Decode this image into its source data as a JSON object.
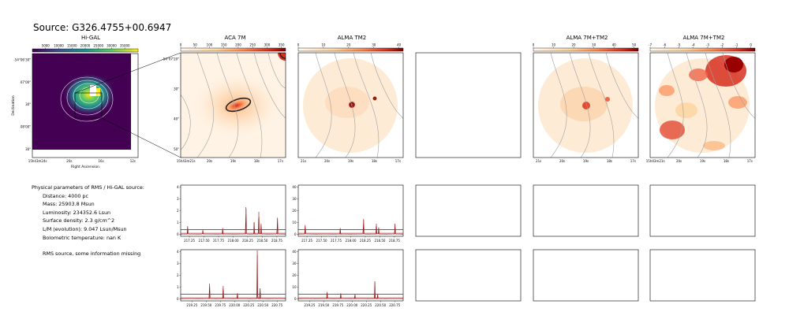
{
  "figure": {
    "title": "Source: G326.4755+00.6947"
  },
  "image_panels": [
    {
      "id": "higal",
      "title": "Hi-GAL",
      "colorbar_ticks": [
        "5000",
        "10000",
        "15000",
        "20000",
        "25000",
        "30000",
        "35000"
      ],
      "y_ticks": [
        "-54°06'30\"",
        "07'00\"",
        "30\"",
        "08'00\"",
        "30\""
      ],
      "x_ticks": [
        "15h43m24s",
        "20s",
        "16s",
        "12s"
      ],
      "xlabel": "Right Ascension",
      "ylabel": "Declination"
    },
    {
      "id": "aca7m",
      "title": "ACA 7M",
      "colorbar_ticks": [
        "0",
        "50",
        "100",
        "150",
        "200",
        "250",
        "300",
        "350"
      ],
      "y_ticks": [
        "-54°07'20\"",
        "30\"",
        "40\"",
        "50\""
      ],
      "x_ticks": [
        "15h43m21s",
        "20s",
        "19s",
        "18s",
        "17s"
      ]
    },
    {
      "id": "almatm2",
      "title": "ALMA TM2",
      "colorbar_ticks": [
        "0",
        "10",
        "20",
        "30",
        "40"
      ],
      "x_ticks": [
        "21s",
        "20s",
        "19s",
        "18s",
        "17s"
      ]
    },
    {
      "id": "empty1",
      "title": ""
    },
    {
      "id": "alma7mtm2",
      "title": "ALMA 7M+TM2",
      "colorbar_ticks": [
        "0",
        "10",
        "20",
        "30",
        "40",
        "50"
      ],
      "x_ticks": [
        "21s",
        "20s",
        "19s",
        "18s",
        "17s"
      ]
    },
    {
      "id": "alma7mtm2b",
      "title": "ALMA 7M+TM2",
      "colorbar_ticks": [
        "-7",
        "-6",
        "-5",
        "-4",
        "-3",
        "-2",
        "-1",
        "0"
      ],
      "x_ticks": [
        "15h43m21s",
        "20s",
        "19s",
        "18s",
        "17s"
      ]
    }
  ],
  "info": {
    "heading": "Physical parameters of RMS / Hi-GAL source:",
    "lines": [
      "Distance: 4000 pc",
      "Mass: 25903.8 Msun",
      "Luminosity: 234352.6 Lsun",
      "Surface density: 2.3 g/cm^2",
      "L/M (evolution): 9.047 Lsun/Msun",
      "Bolometric temperature: nan K"
    ],
    "note": "RMS source, some information missing"
  },
  "spectra": [
    {
      "id": "aca-row1",
      "y_ticks": [
        "0",
        "1",
        "2",
        "3",
        "4"
      ],
      "ymax": 4,
      "x_ticks": [
        "217.25",
        "217.50",
        "217.75",
        "218.00",
        "218.25",
        "218.50",
        "218.75"
      ],
      "xmin": 217.1,
      "xmax": 218.9,
      "level": 0.4,
      "peaks": [
        [
          217.22,
          0.7
        ],
        [
          217.48,
          0.35
        ],
        [
          217.82,
          0.5
        ],
        [
          218.22,
          2.3
        ],
        [
          218.36,
          1.0
        ],
        [
          218.44,
          1.9
        ],
        [
          218.48,
          0.9
        ],
        [
          218.76,
          1.4
        ]
      ]
    },
    {
      "id": "tm2-row1",
      "y_ticks": [
        "0",
        "10",
        "20",
        "30",
        "40"
      ],
      "ymax": 40,
      "x_ticks": [
        "217.25",
        "217.50",
        "217.75",
        "218.00",
        "218.25",
        "218.50",
        "218.75"
      ],
      "xmin": 217.1,
      "xmax": 218.9,
      "level": 4,
      "peaks": [
        [
          217.22,
          8
        ],
        [
          217.82,
          5
        ],
        [
          218.22,
          13
        ],
        [
          218.44,
          9
        ],
        [
          218.48,
          6
        ],
        [
          218.76,
          9
        ]
      ]
    },
    {
      "id": "aca-row2",
      "y_ticks": [
        "0",
        "1",
        "2",
        "3",
        "4"
      ],
      "ymax": 4,
      "x_ticks": [
        "219.25",
        "219.50",
        "219.75",
        "220.00",
        "220.25",
        "220.50",
        "220.75"
      ],
      "xmin": 219.05,
      "xmax": 220.9,
      "level": 0.4,
      "peaks": [
        [
          219.56,
          1.3
        ],
        [
          219.8,
          1.1
        ],
        [
          220.05,
          0.5
        ],
        [
          220.4,
          4.1
        ],
        [
          220.45,
          0.9
        ]
      ]
    },
    {
      "id": "tm2-row2",
      "y_ticks": [
        "0",
        "10",
        "20",
        "30",
        "40"
      ],
      "ymax": 40,
      "x_ticks": [
        "219.25",
        "219.50",
        "219.75",
        "220.00",
        "220.25",
        "220.50",
        "220.75"
      ],
      "xmin": 219.05,
      "xmax": 220.9,
      "level": 4,
      "peaks": [
        [
          219.56,
          6
        ],
        [
          219.8,
          5
        ],
        [
          220.05,
          4
        ],
        [
          220.4,
          15
        ],
        [
          220.45,
          4
        ]
      ]
    }
  ]
}
